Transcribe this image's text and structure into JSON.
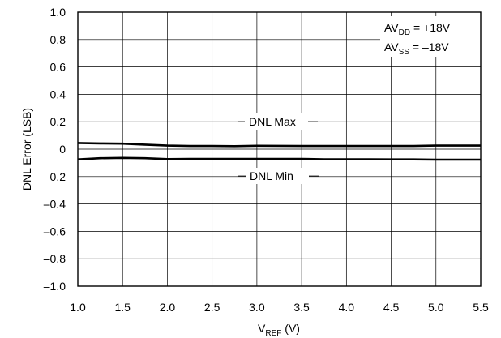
{
  "chart_data": {
    "type": "line",
    "xlabel": {
      "main": "V",
      "sub": "REF",
      "tail": " (V)"
    },
    "ylabel": "DNL Error (LSB)",
    "xlim": [
      1.0,
      5.5
    ],
    "ylim": [
      -1.0,
      1.0
    ],
    "x_ticks": [
      "1.0",
      "1.5",
      "2.0",
      "2.5",
      "3.0",
      "3.5",
      "4.0",
      "4.5",
      "5.0",
      "5.5"
    ],
    "y_ticks": [
      "1.0",
      "0.8",
      "0.6",
      "0.4",
      "0.2",
      "0",
      "–0.2",
      "–0.4",
      "–0.6",
      "–0.8",
      "–1.0"
    ],
    "grid": true,
    "legend_box": [
      {
        "main": "AV",
        "sub": "DD",
        "tail": " = +18V"
      },
      {
        "main": "AV",
        "sub": "SS",
        "tail": " = –18V"
      }
    ],
    "series": [
      {
        "name": "DNL Max",
        "x": [
          1.0,
          1.25,
          1.5,
          1.75,
          2.0,
          2.25,
          2.5,
          2.75,
          3.0,
          3.25,
          3.5,
          3.75,
          4.0,
          4.25,
          4.5,
          4.75,
          5.0,
          5.25,
          5.5
        ],
        "y": [
          0.045,
          0.042,
          0.04,
          0.033,
          0.026,
          0.023,
          0.023,
          0.022,
          0.025,
          0.024,
          0.023,
          0.023,
          0.023,
          0.023,
          0.023,
          0.023,
          0.026,
          0.026,
          0.026
        ]
      },
      {
        "name": "DNL Min",
        "x": [
          1.0,
          1.25,
          1.5,
          1.75,
          2.0,
          2.25,
          2.5,
          2.75,
          3.0,
          3.25,
          3.5,
          3.75,
          4.0,
          4.25,
          4.5,
          4.75,
          5.0,
          5.25,
          5.5
        ],
        "y": [
          -0.075,
          -0.066,
          -0.064,
          -0.066,
          -0.073,
          -0.071,
          -0.071,
          -0.071,
          -0.071,
          -0.071,
          -0.071,
          -0.074,
          -0.074,
          -0.074,
          -0.075,
          -0.075,
          -0.077,
          -0.077,
          -0.077
        ]
      }
    ],
    "annotations": [
      "DNL Max",
      "DNL Min"
    ]
  }
}
